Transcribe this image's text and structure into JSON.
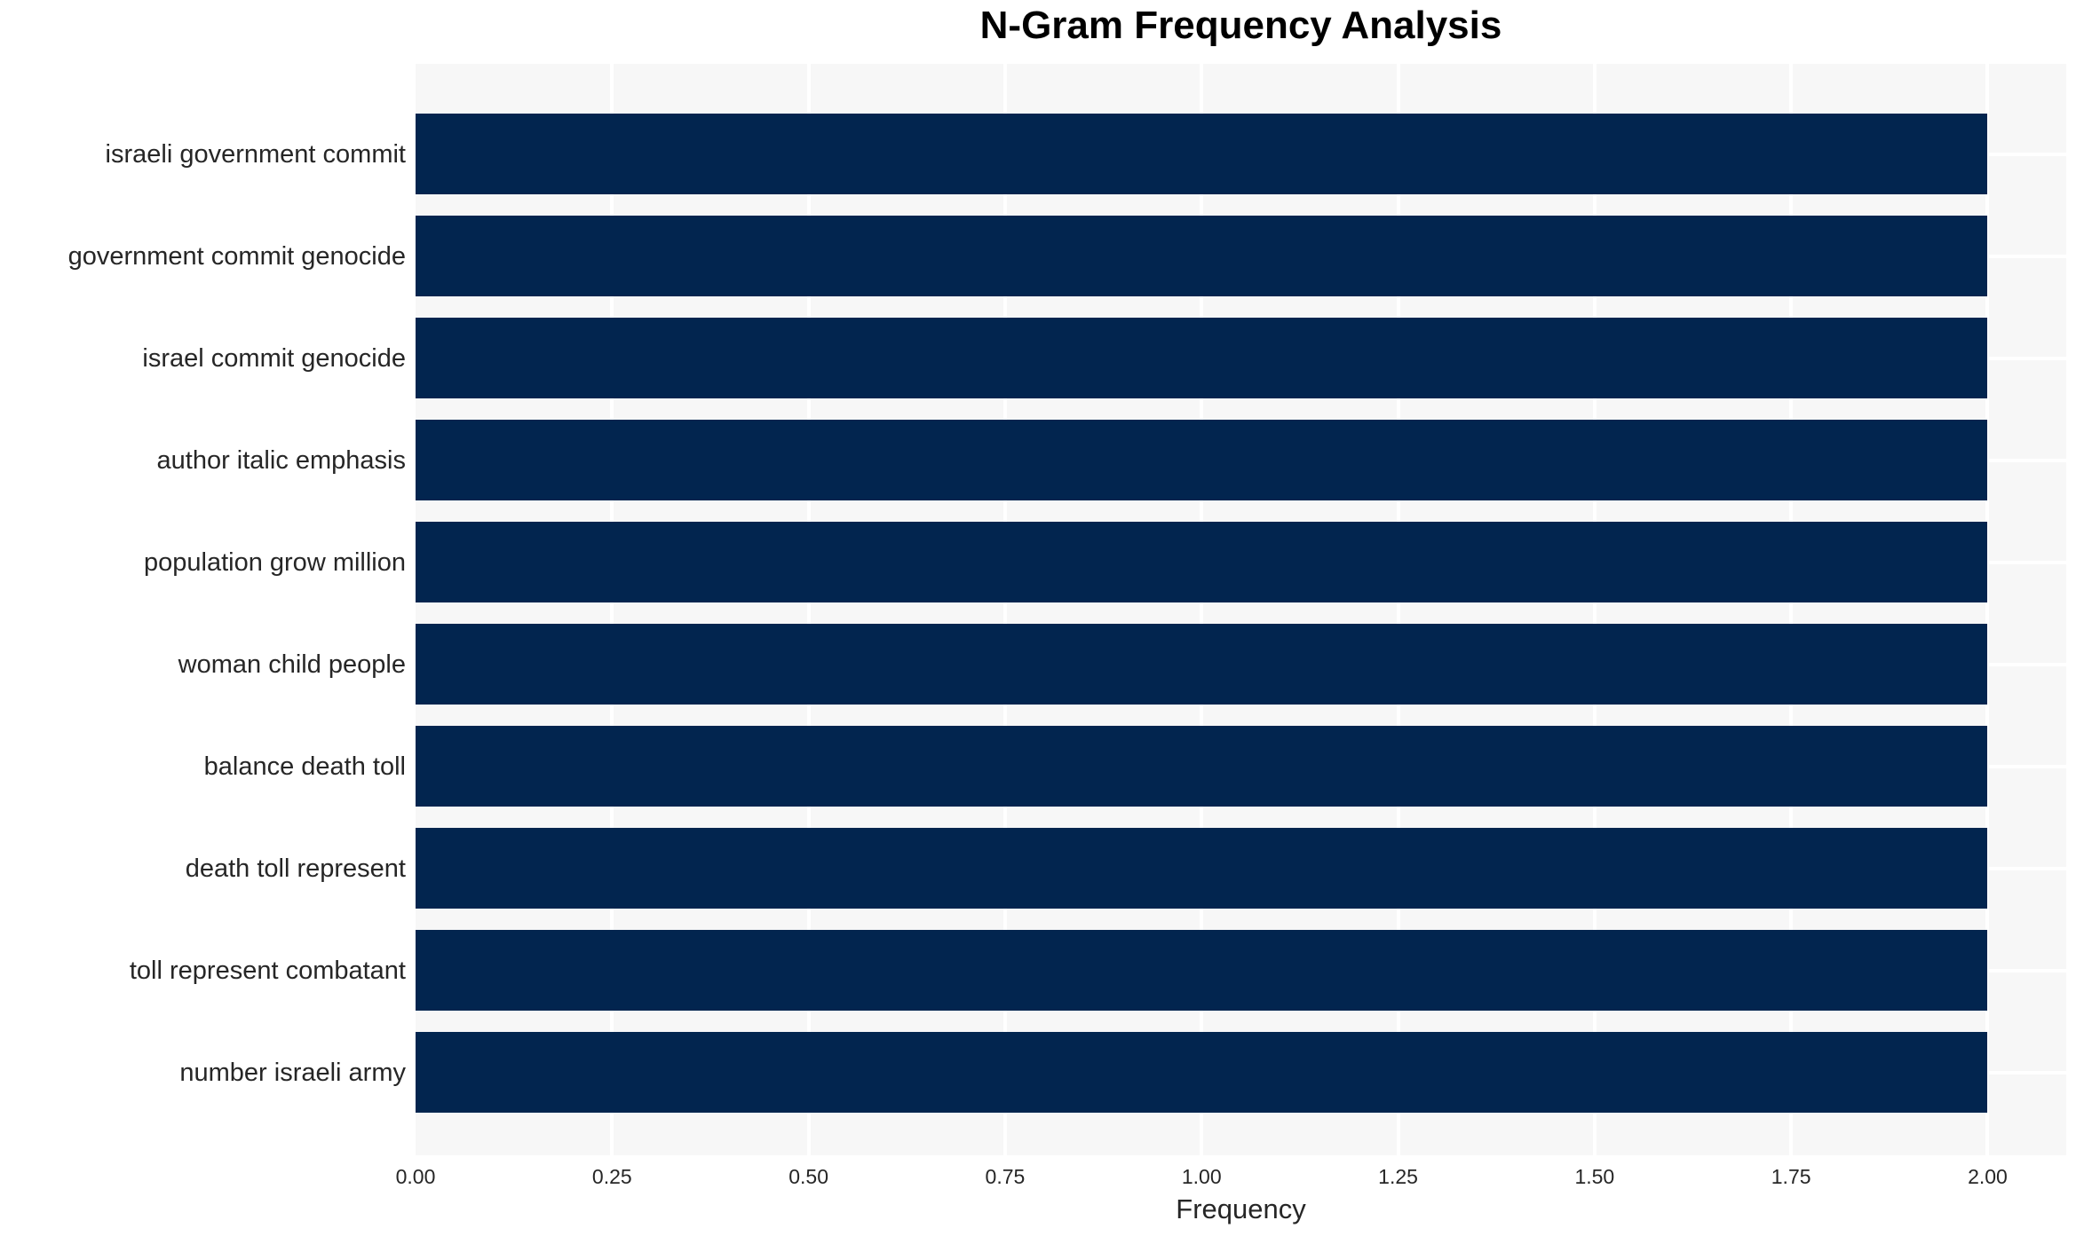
{
  "chart_data": {
    "type": "bar",
    "orientation": "horizontal",
    "title": "N-Gram Frequency Analysis",
    "xlabel": "Frequency",
    "ylabel": "",
    "categories": [
      "israeli government commit",
      "government commit genocide",
      "israel commit genocide",
      "author italic emphasis",
      "population grow million",
      "woman child people",
      "balance death toll",
      "death toll represent",
      "toll represent combatant",
      "number israeli army"
    ],
    "values": [
      2,
      2,
      2,
      2,
      2,
      2,
      2,
      2,
      2,
      2
    ],
    "xlim": [
      0,
      2.1
    ],
    "xticks": [
      "0.00",
      "0.25",
      "0.50",
      "0.75",
      "1.00",
      "1.25",
      "1.50",
      "1.75",
      "2.00"
    ],
    "grid": true,
    "legend": false,
    "colors": {
      "bar": "#02254f",
      "plot_background": "#f7f7f7",
      "grid_line": "#ffffff",
      "page_background": "#ffffff",
      "title_text": "#000000",
      "label_text": "#262626"
    }
  }
}
